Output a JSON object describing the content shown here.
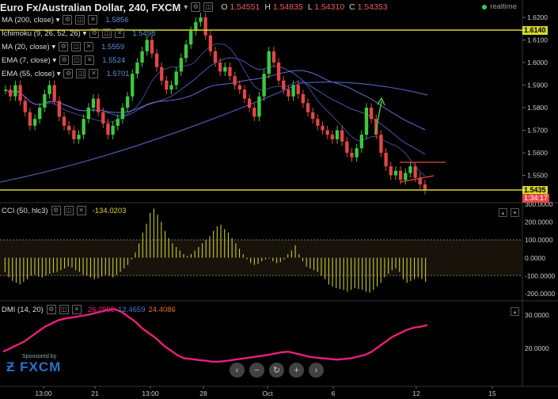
{
  "header": {
    "symbol": "Euro Fx/Australian Dollar, 240, FXCM",
    "dropdown_glyph": "▾",
    "ohlc": [
      {
        "k": "O",
        "v": "1.54551"
      },
      {
        "k": "H",
        "v": "1.54835"
      },
      {
        "k": "L",
        "v": "1.54310"
      },
      {
        "k": "C",
        "v": "1.54353"
      }
    ],
    "realtime": "realtime"
  },
  "indicators": [
    {
      "label": "MA (200, close)",
      "value": "1.5856"
    },
    {
      "label": "Ichimoku (9, 26, 52, 26)",
      "value": "1.5498"
    },
    {
      "label": "MA (20, close)",
      "value": "1.5559"
    },
    {
      "label": "EMA (7, close)",
      "value": "1.5524"
    },
    {
      "label": "EMA (55, close)",
      "value": "1.5701"
    }
  ],
  "price_axis": {
    "ticks": [
      "1.6200",
      "1.6100",
      "1.6000",
      "1.5900",
      "1.5800",
      "1.5700",
      "1.5600",
      "1.5500"
    ],
    "level_high": "1.6140",
    "level_low": "1.5435",
    "countdown": "1:34:17"
  },
  "cci": {
    "label": "CCI (50, hlc3)",
    "value": "-134.0203",
    "ticks": [
      "300.0000",
      "200.0000",
      "100.0000",
      "0.0000",
      "-100.0000",
      "-200.0000"
    ],
    "series": [
      -80,
      -110,
      -130,
      -140,
      -150,
      -135,
      -120,
      -100,
      -95,
      -105,
      -110,
      -100,
      -90,
      -85,
      -80,
      -70,
      -60,
      -50,
      -55,
      -70,
      -80,
      -95,
      -100,
      -110,
      -120,
      -115,
      -105,
      -95,
      -100,
      -110,
      -95,
      -80,
      -60,
      -40,
      -10,
      30,
      80,
      140,
      190,
      250,
      275,
      240,
      200,
      150,
      110,
      80,
      60,
      40,
      20,
      10,
      20,
      40,
      60,
      80,
      100,
      120,
      150,
      175,
      185,
      160,
      140,
      110,
      80,
      50,
      20,
      -10,
      -30,
      -40,
      -35,
      -20,
      -10,
      -5,
      -20,
      -30,
      -25,
      -10,
      20,
      40,
      70,
      20,
      -20,
      -50,
      -60,
      -70,
      -80,
      -100,
      -120,
      -150,
      -160,
      -170,
      -175,
      -180,
      -190,
      -180,
      -170,
      -175,
      -180,
      -190,
      -195,
      -180,
      -160,
      -140,
      -110,
      -90,
      -70,
      -60,
      -80,
      -120,
      -140,
      -130,
      -120,
      -110,
      -120,
      -135
    ]
  },
  "dmi": {
    "label": "DMI (14, 20)",
    "values": [
      "26.2995",
      "12.4659",
      "24.4086"
    ],
    "ticks": [
      "30.0000",
      "20.0000"
    ],
    "series": [
      19,
      20,
      21,
      22,
      23.5,
      25,
      26.5,
      27.5,
      28.5,
      29,
      29.3,
      29.7,
      30,
      30.5,
      31,
      31.5,
      31.8,
      31,
      29.5,
      28,
      26,
      24.5,
      23,
      21,
      19.5,
      18,
      17,
      16.8,
      16.5,
      16.3,
      16,
      16,
      16.2,
      16.5,
      16.8,
      17.1,
      17.4,
      17.7,
      18,
      18.4,
      18.8,
      19,
      18.5,
      18,
      17.5,
      17.2,
      17,
      16.8,
      16.6,
      16.8,
      17,
      17.5,
      18,
      19,
      20.5,
      22,
      23.5,
      24.5,
      25.5,
      26.2,
      26.5,
      27
    ]
  },
  "time_axis": [
    "13:00",
    "21",
    "13:00",
    "28",
    "Oct",
    "6",
    "12",
    "15"
  ],
  "sponsor": {
    "line1": "Sponsored by",
    "line2": "FXCM"
  },
  "nav_buttons": [
    "‹",
    "−",
    "↻",
    "+",
    "›"
  ],
  "colors": {
    "up": "#3ec93e",
    "down": "#e24646",
    "level": "#d7d72a",
    "ma200": "#4a5aa8",
    "cci": "#c8c832",
    "dmi": "#e8207a",
    "cci_val": "#d7d72a",
    "dmi_v1": "#e8207a",
    "dmi_v2": "#4a7ad9",
    "dmi_v3": "#e86a2a"
  }
}
